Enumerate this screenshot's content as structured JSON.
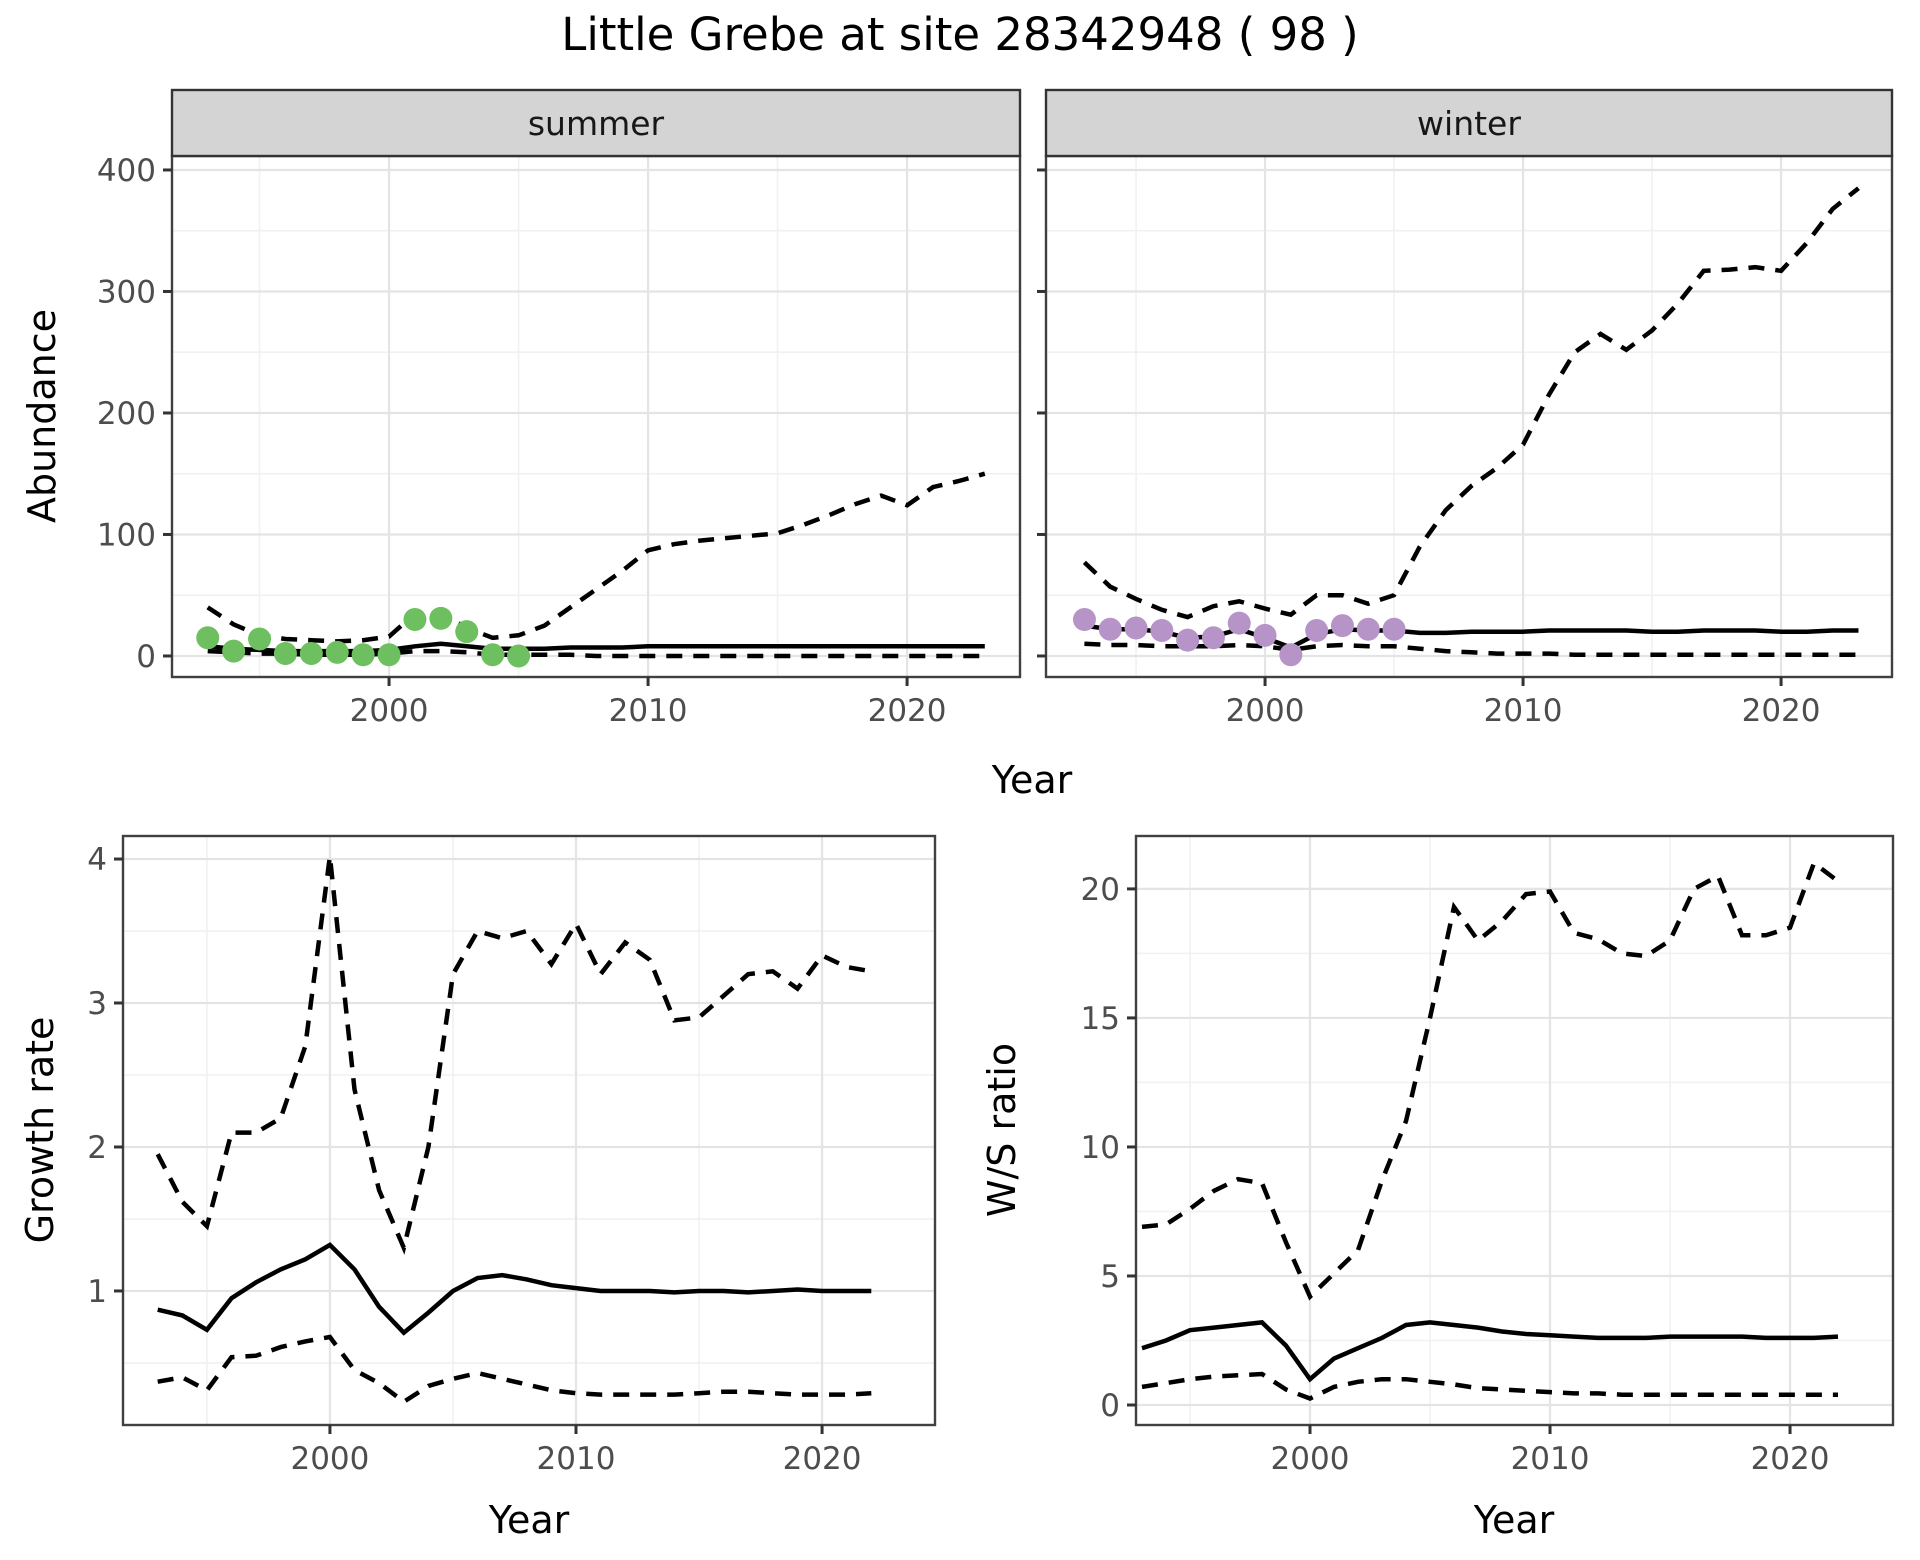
{
  "title": "Little Grebe at site 28342948 ( 98 )",
  "chart_data": {
    "type": "line",
    "title": "Little Grebe at site 28342948 ( 98 )",
    "x_axis_label": "Year",
    "grid": true,
    "legend": "none",
    "colors": {
      "summer_points": "#6dbf5f",
      "winter_points": "#b694c8",
      "line": "#000000",
      "strip_fill": "#d4d4d4",
      "panel_border": "#404040",
      "grid_major": "#e4e4e4",
      "grid_minor": "#f1f1f1",
      "tick_text": "#4d4d4d"
    },
    "panels": [
      {
        "id": "abundance-summer",
        "strip_label": "summer",
        "y_axis_label": "Abundance",
        "xlim": [
          1991.62,
          2024.36
        ],
        "ylim": [
          -17.3,
          411.5
        ],
        "x_ticks": [
          {
            "v": 2000,
            "label": "2000"
          },
          {
            "v": 2010,
            "label": "2010"
          },
          {
            "v": 2020,
            "label": "2020"
          }
        ],
        "x_minor": [
          1995,
          2005,
          2015
        ],
        "y_ticks": [
          {
            "v": 0,
            "label": "0"
          },
          {
            "v": 100,
            "label": "100"
          },
          {
            "v": 200,
            "label": "200"
          },
          {
            "v": 300,
            "label": "300"
          },
          {
            "v": 400,
            "label": "400"
          }
        ],
        "y_minor": [
          50,
          150,
          250,
          350
        ],
        "show_y_tick_labels": true,
        "series": [
          {
            "name": "upper-credible-interval",
            "style": "dashed",
            "start": 1993,
            "values": [
              40,
              26,
              17,
              14,
              13,
              12,
              13,
              16,
              35,
              35,
              23,
              15,
              17,
              25,
              40,
              55,
              70,
              87,
              92,
              95,
              97,
              99,
              101,
              108,
              116,
              125,
              132,
              124,
              139,
              144,
              150
            ]
          },
          {
            "name": "median",
            "style": "solid",
            "start": 1993,
            "values": [
              8,
              6,
              5,
              4,
              4,
              4,
              4,
              5,
              8,
              10,
              8,
              6,
              6,
              6,
              7,
              7,
              7,
              8,
              8,
              8,
              8,
              8,
              8,
              8,
              8,
              8,
              8,
              8,
              8,
              8,
              8
            ]
          },
          {
            "name": "lower-credible-interval",
            "style": "dashed",
            "start": 1993,
            "values": [
              4,
              3,
              2,
              2,
              1,
              1,
              1,
              2,
              4,
              4,
              3,
              1,
              1,
              1,
              1,
              0,
              0,
              0,
              0,
              0,
              0,
              0,
              0,
              0,
              0,
              0,
              0,
              0,
              0,
              0,
              0
            ]
          }
        ],
        "points": {
          "name": "observed-summer-counts",
          "color": "#6dbf5f",
          "start": 1993,
          "values": [
            15,
            4,
            14,
            2,
            2,
            3,
            1,
            1,
            30,
            31,
            20,
            1,
            0
          ]
        }
      },
      {
        "id": "abundance-winter",
        "strip_label": "winter",
        "y_axis_label": "Abundance",
        "xlim": [
          1991.51,
          2024.3
        ],
        "ylim": [
          -17.3,
          411.5
        ],
        "x_ticks": [
          {
            "v": 2000,
            "label": "2000"
          },
          {
            "v": 2010,
            "label": "2010"
          },
          {
            "v": 2020,
            "label": "2020"
          }
        ],
        "x_minor": [
          1995,
          2005,
          2015
        ],
        "y_ticks": [
          {
            "v": 0,
            "label": "0"
          },
          {
            "v": 100,
            "label": "100"
          },
          {
            "v": 200,
            "label": "200"
          },
          {
            "v": 300,
            "label": "300"
          },
          {
            "v": 400,
            "label": "400"
          }
        ],
        "y_minor": [
          50,
          150,
          250,
          350
        ],
        "show_y_tick_labels": false,
        "series": [
          {
            "name": "upper-credible-interval",
            "style": "dashed",
            "start": 1993,
            "values": [
              77,
              57,
              47,
              38,
              32,
              41,
              45,
              39,
              34,
              50,
              50,
              43,
              50,
              90,
              120,
              140,
              155,
              174,
              215,
              250,
              265,
              252,
              268,
              290,
              317,
              318,
              320,
              317,
              340,
              368,
              385
            ]
          },
          {
            "name": "median",
            "style": "solid",
            "start": 1993,
            "values": [
              25,
              22,
              22,
              20,
              15,
              16,
              22,
              15,
              7,
              18,
              22,
              21,
              21,
              19,
              19,
              20,
              20,
              20,
              21,
              21,
              21,
              21,
              20,
              20,
              21,
              21,
              21,
              20,
              20,
              21,
              21
            ]
          },
          {
            "name": "lower-credible-interval",
            "style": "dashed",
            "start": 1993,
            "values": [
              10,
              9,
              9,
              8,
              8,
              8,
              9,
              8,
              5,
              8,
              9,
              8,
              8,
              6,
              4,
              3,
              2,
              2,
              2,
              1,
              1,
              1,
              1,
              1,
              1,
              1,
              1,
              1,
              1,
              1,
              1
            ]
          }
        ],
        "points": {
          "name": "observed-winter-counts",
          "color": "#b694c8",
          "start": 1993,
          "values": [
            30,
            22,
            23,
            21,
            13,
            15,
            27,
            17,
            1,
            21,
            25,
            22,
            22
          ]
        }
      },
      {
        "id": "growth-rate",
        "strip_label": null,
        "y_axis_label": "Growth rate",
        "xlim": [
          1991.59,
          2024.59
        ],
        "ylim": [
          0.069,
          4.16
        ],
        "x_ticks": [
          {
            "v": 2000,
            "label": "2000"
          },
          {
            "v": 2010,
            "label": "2010"
          },
          {
            "v": 2020,
            "label": "2020"
          }
        ],
        "x_minor": [
          1995,
          2005,
          2015
        ],
        "y_ticks": [
          {
            "v": 1,
            "label": "1"
          },
          {
            "v": 2,
            "label": "2"
          },
          {
            "v": 3,
            "label": "3"
          },
          {
            "v": 4,
            "label": "4"
          }
        ],
        "y_minor": [
          0.5,
          1.5,
          2.5,
          3.5
        ],
        "show_y_tick_labels": true,
        "series": [
          {
            "name": "upper-credible-interval",
            "style": "dashed",
            "start": 1993,
            "values": [
              1.95,
              1.62,
              1.45,
              2.1,
              2.1,
              2.2,
              2.7,
              4.02,
              2.4,
              1.7,
              1.3,
              2.0,
              3.2,
              3.5,
              3.45,
              3.5,
              3.27,
              3.55,
              3.2,
              3.42,
              3.3,
              2.88,
              2.9,
              3.05,
              3.2,
              3.22,
              3.1,
              3.33,
              3.25,
              3.22
            ]
          },
          {
            "name": "median",
            "style": "solid",
            "start": 1993,
            "values": [
              0.87,
              0.83,
              0.73,
              0.95,
              1.06,
              1.15,
              1.22,
              1.32,
              1.15,
              0.89,
              0.71,
              0.85,
              1.0,
              1.09,
              1.11,
              1.08,
              1.04,
              1.02,
              1.0,
              1.0,
              1.0,
              0.99,
              1.0,
              1.0,
              0.99,
              1.0,
              1.01,
              1.0,
              1.0,
              1.0
            ]
          },
          {
            "name": "lower-credible-interval",
            "style": "dashed",
            "start": 1993,
            "values": [
              0.37,
              0.4,
              0.31,
              0.54,
              0.55,
              0.61,
              0.65,
              0.68,
              0.45,
              0.36,
              0.23,
              0.34,
              0.39,
              0.43,
              0.39,
              0.35,
              0.31,
              0.29,
              0.28,
              0.28,
              0.28,
              0.28,
              0.29,
              0.3,
              0.3,
              0.29,
              0.28,
              0.28,
              0.28,
              0.29
            ]
          }
        ],
        "points": null
      },
      {
        "id": "ws-ratio",
        "strip_label": null,
        "y_axis_label": "W/S ratio",
        "xlim": [
          1992.75,
          2024.29
        ],
        "ylim": [
          -0.775,
          22.05
        ],
        "x_ticks": [
          {
            "v": 2000,
            "label": "2000"
          },
          {
            "v": 2010,
            "label": "2010"
          },
          {
            "v": 2020,
            "label": "2020"
          }
        ],
        "x_minor": [
          1995,
          2005,
          2015
        ],
        "y_ticks": [
          {
            "v": 0,
            "label": "0"
          },
          {
            "v": 5,
            "label": "5"
          },
          {
            "v": 10,
            "label": "10"
          },
          {
            "v": 15,
            "label": "15"
          },
          {
            "v": 20,
            "label": "20"
          }
        ],
        "y_minor": [
          2.5,
          7.5,
          12.5,
          17.5
        ],
        "show_y_tick_labels": true,
        "series": [
          {
            "name": "upper-credible-interval",
            "style": "dashed",
            "start": 1993,
            "values": [
              6.9,
              7.0,
              7.6,
              8.3,
              8.75,
              8.6,
              6.3,
              4.2,
              5.1,
              6.0,
              8.7,
              11.0,
              15.0,
              19.3,
              18.0,
              18.75,
              19.8,
              19.9,
              18.3,
              18.05,
              17.5,
              17.4,
              18.0,
              20.0,
              20.5,
              18.2,
              18.2,
              18.5,
              21.0,
              20.3
            ]
          },
          {
            "name": "median",
            "style": "solid",
            "start": 1993,
            "values": [
              2.2,
              2.5,
              2.9,
              3.0,
              3.1,
              3.2,
              2.3,
              1.0,
              1.8,
              2.2,
              2.6,
              3.1,
              3.2,
              3.1,
              3.0,
              2.85,
              2.75,
              2.7,
              2.65,
              2.6,
              2.6,
              2.6,
              2.65,
              2.65,
              2.65,
              2.65,
              2.6,
              2.6,
              2.6,
              2.65
            ]
          },
          {
            "name": "lower-credible-interval",
            "style": "dashed",
            "start": 1993,
            "values": [
              0.7,
              0.85,
              1.0,
              1.1,
              1.15,
              1.2,
              0.6,
              0.25,
              0.7,
              0.9,
              1.0,
              1.0,
              0.9,
              0.8,
              0.65,
              0.6,
              0.55,
              0.5,
              0.45,
              0.45,
              0.4,
              0.4,
              0.4,
              0.4,
              0.4,
              0.4,
              0.4,
              0.4,
              0.4,
              0.4
            ]
          }
        ],
        "points": null
      }
    ]
  }
}
